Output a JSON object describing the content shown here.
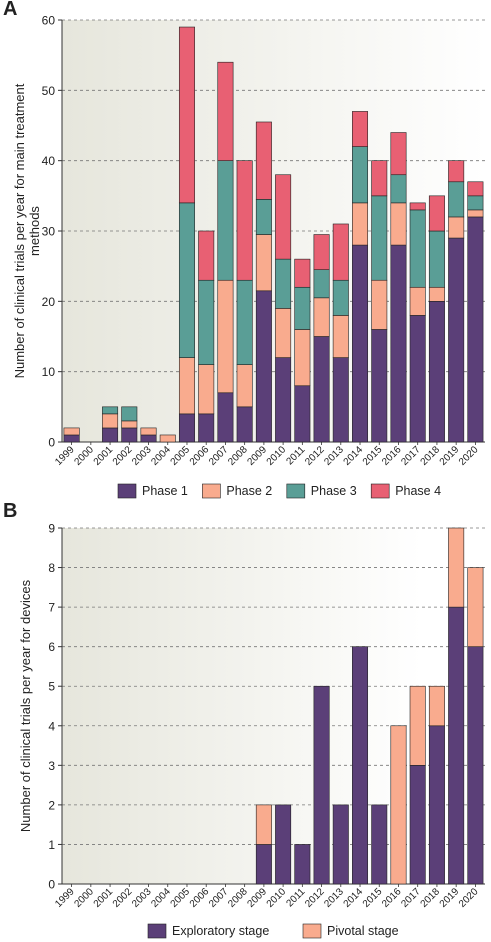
{
  "panels": {
    "a": {
      "label": "A"
    },
    "b": {
      "label": "B"
    }
  },
  "chart_data": [
    {
      "type": "bar",
      "stacked": true,
      "title": "",
      "xlabel": "",
      "ylabel": "Number of clinical trials per year for main treatment methods",
      "ylim": [
        0,
        60
      ],
      "yticks": [
        0,
        10,
        20,
        30,
        40,
        50,
        60
      ],
      "grid": "horizontal dashed",
      "legend_position": "bottom",
      "categories": [
        "1999",
        "2000",
        "2001",
        "2002",
        "2003",
        "2004",
        "2005",
        "2006",
        "2007",
        "2008",
        "2009",
        "2010",
        "2011",
        "2012",
        "2013",
        "2014",
        "2015",
        "2016",
        "2017",
        "2018",
        "2019",
        "2020"
      ],
      "series": [
        {
          "name": "Phase 1",
          "color": "#5b3f78",
          "values": [
            1,
            0,
            2,
            2,
            1,
            0,
            4,
            4,
            7,
            5,
            21.5,
            12,
            8,
            15,
            12,
            28,
            16,
            28,
            18,
            20,
            29,
            32
          ]
        },
        {
          "name": "Phase 2",
          "color": "#f9ab8e",
          "values": [
            1,
            0,
            2,
            1,
            1,
            1,
            8,
            7,
            16,
            6,
            8,
            7,
            8,
            5.5,
            6,
            6,
            7,
            6,
            4,
            2,
            3,
            1
          ]
        },
        {
          "name": "Phase 3",
          "color": "#5a9e96",
          "values": [
            0,
            0,
            1,
            2,
            0,
            0,
            22,
            12,
            17,
            12,
            5,
            7,
            6,
            4,
            5,
            8,
            12,
            4,
            11,
            8,
            5,
            2
          ]
        },
        {
          "name": "Phase 4",
          "color": "#e86073",
          "values": [
            0,
            0,
            0,
            0,
            0,
            0,
            25,
            7,
            14,
            17,
            11,
            12,
            4,
            5,
            8,
            5,
            5,
            6,
            1,
            5,
            3,
            2
          ]
        }
      ]
    },
    {
      "type": "bar",
      "stacked": true,
      "title": "",
      "xlabel": "",
      "ylabel": "Number of clinical trials per year for devices",
      "ylim": [
        0,
        9
      ],
      "yticks": [
        0,
        1,
        2,
        3,
        4,
        5,
        6,
        7,
        8,
        9
      ],
      "grid": "horizontal dashed",
      "legend_position": "bottom",
      "categories": [
        "1999",
        "2000",
        "2001",
        "2002",
        "2003",
        "2004",
        "2005",
        "2006",
        "2007",
        "2008",
        "2009",
        "2010",
        "2011",
        "2012",
        "2013",
        "2014",
        "2015",
        "2016",
        "2017",
        "2018",
        "2019",
        "2020"
      ],
      "series": [
        {
          "name": "Exploratory stage",
          "color": "#5b3f78",
          "values": [
            0,
            0,
            0,
            0,
            0,
            0,
            0,
            0,
            0,
            0,
            1,
            2,
            1,
            5,
            2,
            6,
            2,
            0,
            3,
            4,
            7,
            6
          ]
        },
        {
          "name": "Pivotal stage",
          "color": "#f9ab8e",
          "values": [
            0,
            0,
            0,
            0,
            0,
            0,
            0,
            0,
            0,
            0,
            1,
            0,
            0,
            0,
            0,
            0,
            0,
            4,
            2,
            1,
            2,
            2
          ]
        }
      ]
    }
  ]
}
